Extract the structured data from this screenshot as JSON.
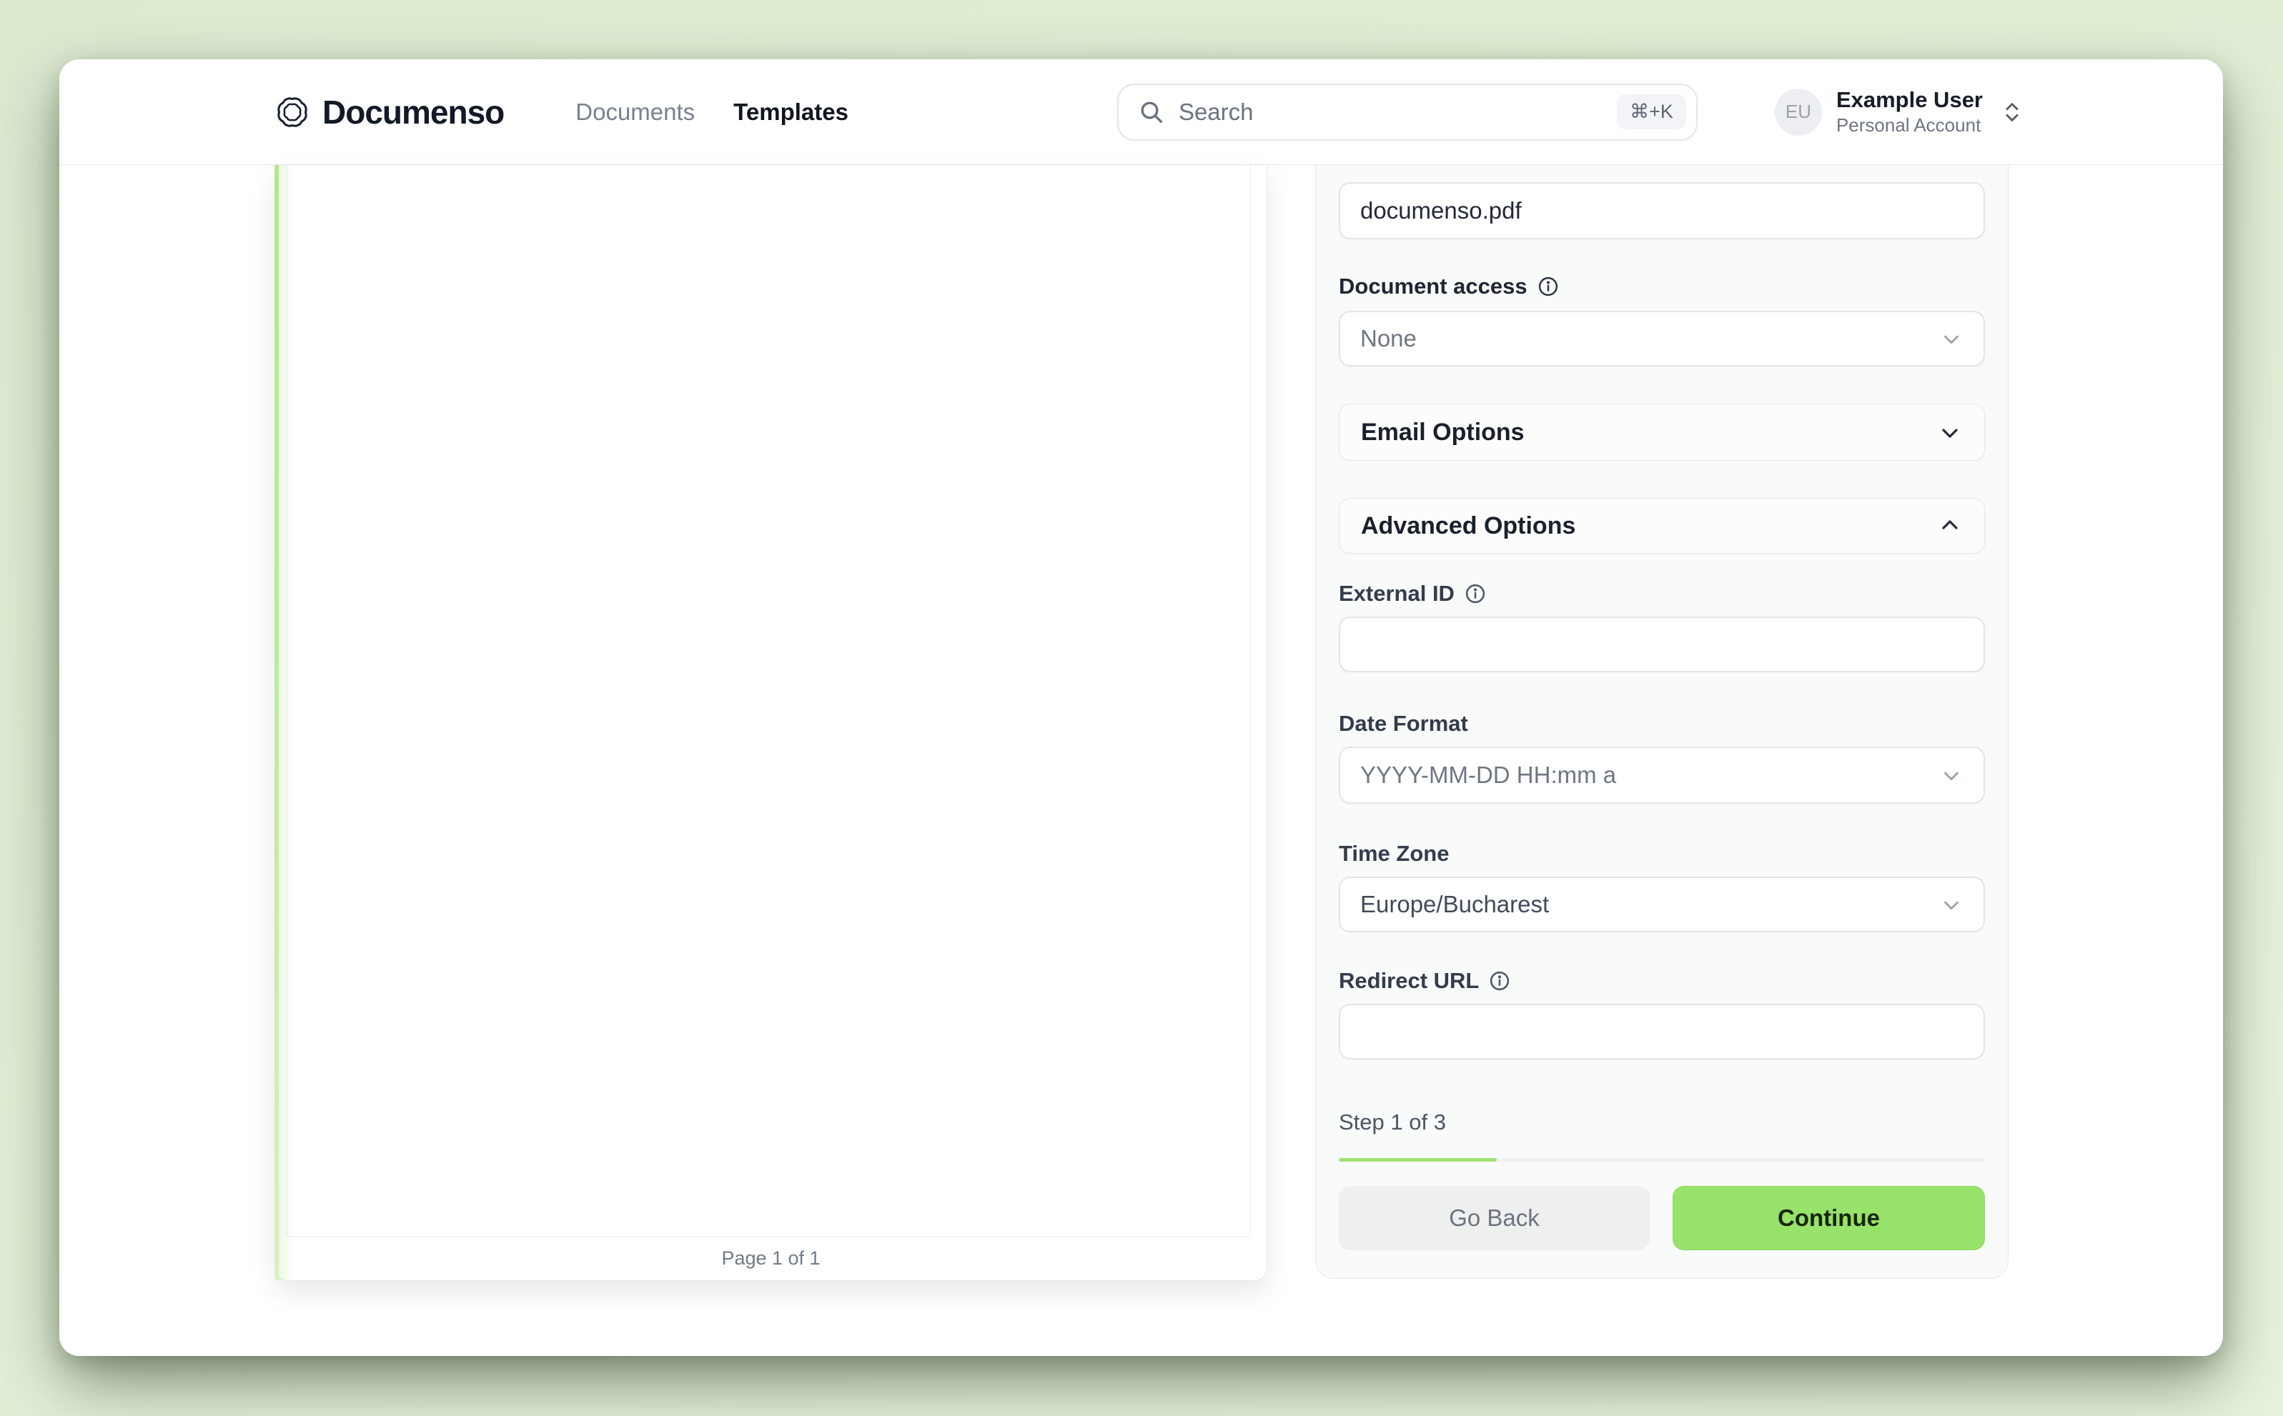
{
  "brand": {
    "name": "Documenso"
  },
  "nav": {
    "items": [
      {
        "label": "Documents"
      },
      {
        "label": "Templates"
      }
    ]
  },
  "search": {
    "placeholder": "Search",
    "shortcut": "⌘+K"
  },
  "user": {
    "initials": "EU",
    "name": "Example User",
    "account_type": "Personal Account"
  },
  "viewer": {
    "page_indicator": "Page 1 of 1"
  },
  "panel": {
    "title_value": "documenso.pdf",
    "document_access": {
      "label": "Document access",
      "value": "None"
    },
    "email_options": {
      "label": "Email Options"
    },
    "advanced_options": {
      "label": "Advanced Options"
    },
    "external_id": {
      "label": "External ID",
      "value": ""
    },
    "date_format": {
      "label": "Date Format",
      "value": "YYYY-MM-DD HH:mm a"
    },
    "time_zone": {
      "label": "Time Zone",
      "value": "Europe/Bucharest"
    },
    "redirect_url": {
      "label": "Redirect URL",
      "value": ""
    },
    "step": {
      "label": "Step 1 of 3",
      "progress_percent": 24.5
    },
    "actions": {
      "go_back": "Go Back",
      "continue": "Continue"
    }
  },
  "colors": {
    "accent_green": "#97e26a",
    "progress_green": "#a3e171",
    "background_green": "#e0eed4",
    "brand_navy": "#141927"
  }
}
